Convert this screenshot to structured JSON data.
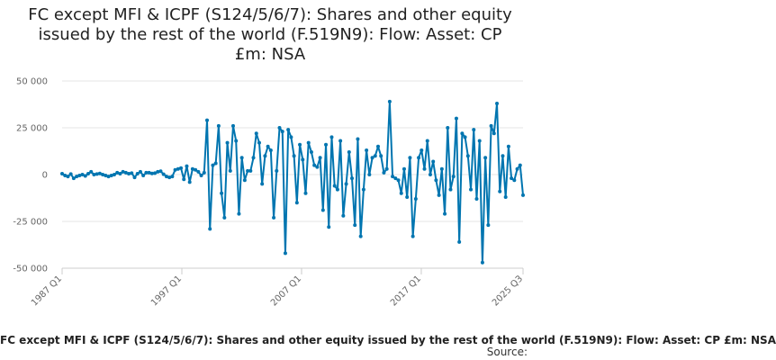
{
  "chart_data": {
    "type": "line",
    "title_lines": [
      "FC except MFI & ICPF (S124/5/6/7): Shares and other equity",
      "issued by the rest of the world (F.519N9): Flow: Asset: CP",
      "£m: NSA"
    ],
    "xlabel": "",
    "ylabel": "",
    "x_ticks": [
      "1987 Q1",
      "1997 Q1",
      "2007 Q1",
      "2017 Q1",
      "2025 Q3"
    ],
    "y_ticks": [
      50000,
      25000,
      0,
      -25000,
      -50000
    ],
    "y_tick_labels": [
      "50 000",
      "25 000",
      "0",
      "-25 000",
      "-50 000"
    ],
    "ylim": [
      -50000,
      50000
    ],
    "x_start": "1987 Q1",
    "x_end": "2025 Q3",
    "grid": true,
    "series": [
      {
        "name": "FC except MFI & ICPF (S124/5/6/7): Shares and other equity issued by the rest of the world (F.519N9): Flow: Asset: CP £m: NSA",
        "color": "#0075b0",
        "values": [
          500,
          -500,
          -1000,
          300,
          -2000,
          -1000,
          -500,
          0,
          -700,
          500,
          1500,
          0,
          300,
          600,
          0,
          -500,
          -1000,
          -500,
          0,
          1000,
          500,
          1500,
          1000,
          500,
          800,
          -1500,
          500,
          1500,
          -500,
          1000,
          1000,
          600,
          800,
          1500,
          1800,
          200,
          -1000,
          -1500,
          -1000,
          2500,
          3000,
          3500,
          -2500,
          4500,
          -4000,
          3000,
          2500,
          1500,
          -500,
          1000,
          29000,
          -29000,
          5000,
          6000,
          26000,
          -10000,
          -23000,
          17000,
          2000,
          26000,
          18000,
          -21000,
          9000,
          -3000,
          2000,
          2000,
          9000,
          22000,
          17000,
          -5000,
          10000,
          15000,
          13000,
          -23000,
          2000,
          25000,
          23000,
          -42000,
          24000,
          20000,
          10000,
          -15000,
          16000,
          8000,
          -10000,
          17000,
          12000,
          5000,
          4000,
          9000,
          -19000,
          16000,
          -28000,
          20000,
          -6000,
          -8000,
          18000,
          -22000,
          -5000,
          12000,
          -2000,
          -27000,
          19000,
          -33000,
          -8000,
          13000,
          0,
          9000,
          10000,
          15000,
          10000,
          1000,
          3000,
          39000,
          -1000,
          -2000,
          -3000,
          -10000,
          3000,
          -12000,
          9000,
          -33000,
          -13000,
          9000,
          13000,
          3000,
          18000,
          0,
          7000,
          -3000,
          -11000,
          3000,
          -21000,
          25000,
          -8000,
          -1000,
          30000,
          -36000,
          22000,
          20000,
          10000,
          -8000,
          24000,
          -13000,
          18000,
          -47000,
          9000,
          -27000,
          26000,
          22000,
          38000,
          -9000,
          10000,
          -12000,
          15000,
          -2000,
          -3000,
          3000,
          5000,
          -11000
        ]
      }
    ],
    "legend_text": "FC except MFI & ICPF (S124/5/6/7): Shares and other equity issued by the rest of the world (F.519N9): Flow: Asset: CP £m: NSA",
    "source_label": "Source:"
  }
}
